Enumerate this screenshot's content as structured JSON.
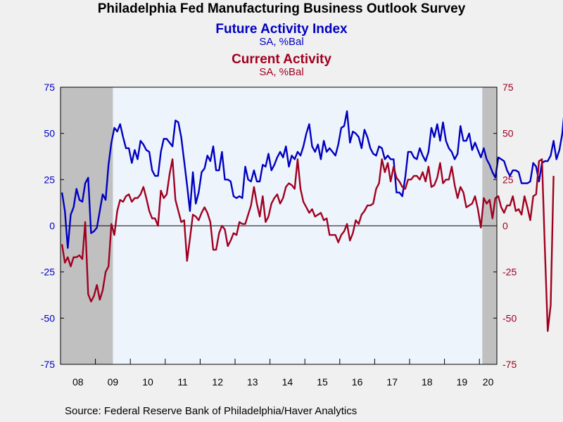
{
  "title": "Philadelphia Fed Manufacturing Business Outlook Survey",
  "source": "Source:  Federal Reserve Bank of Philadelphia/Haver Analytics",
  "colors": {
    "future": "#0000c0",
    "current": "#a00020",
    "recession": "#c0c0c0",
    "plot_bg": "#eef4fc"
  },
  "chart_data": {
    "type": "line",
    "x_unit": "year-month",
    "x_range": [
      "2008-01",
      "2020-06"
    ],
    "x_tick_labels": [
      "08",
      "09",
      "10",
      "11",
      "12",
      "13",
      "14",
      "15",
      "16",
      "17",
      "18",
      "19",
      "20"
    ],
    "ylim_left": [
      -75,
      75
    ],
    "ylim_right": [
      -75,
      75
    ],
    "y_ticks_left": [
      "75",
      "50",
      "25",
      "0",
      "-25",
      "-50",
      "-75"
    ],
    "y_ticks_right": [
      "75",
      "50",
      "25",
      "0",
      "-25",
      "-50",
      "-75"
    ],
    "zero_line": true,
    "grid": false,
    "recession_shading": [
      [
        "2008-01",
        "2009-06"
      ],
      [
        "2020-02",
        "2020-06"
      ]
    ],
    "series": [
      {
        "name": "Future Activity Index",
        "unit": "SA, %Bal",
        "axis": "left",
        "start": "2008-01",
        "values": [
          18,
          8,
          -12,
          6,
          10,
          20,
          14,
          13,
          23,
          26,
          -4,
          -3,
          -1,
          8,
          17,
          14,
          33,
          45,
          53,
          51,
          55,
          48,
          42,
          42,
          34,
          41,
          36,
          46,
          44,
          41,
          40,
          30,
          27,
          27,
          40,
          47,
          47,
          45,
          43,
          57,
          56,
          48,
          35,
          22,
          8,
          29,
          12,
          18,
          29,
          31,
          38,
          35,
          43,
          30,
          30,
          40,
          25,
          25,
          24,
          16,
          15,
          16,
          15,
          32,
          25,
          24,
          30,
          24,
          24,
          33,
          32,
          39,
          30,
          33,
          37,
          40,
          37,
          43,
          32,
          38,
          36,
          40,
          38,
          43,
          50,
          55,
          43,
          40,
          44,
          36,
          46,
          40,
          42,
          40,
          38,
          44,
          53,
          54,
          62,
          45,
          51,
          50,
          48,
          42,
          52,
          48,
          42,
          39,
          38,
          43,
          42,
          36,
          38,
          36,
          36,
          18,
          18,
          16,
          26,
          40,
          40,
          37,
          36,
          42,
          38,
          35,
          40,
          53,
          48,
          55,
          46,
          56,
          46,
          42,
          40,
          36,
          39,
          54,
          46,
          46,
          50,
          41,
          45,
          41,
          37,
          42,
          36,
          33,
          29,
          26,
          37,
          36,
          35,
          30,
          27,
          30,
          30,
          29,
          23,
          23,
          23,
          24,
          34,
          32,
          24,
          34,
          35,
          35,
          38,
          46,
          36,
          41,
          50,
          67
        ]
      },
      {
        "name": "Current Activity",
        "unit": "SA, %Bal",
        "axis": "right",
        "start": "2008-01",
        "values": [
          -10,
          -20,
          -17,
          -22,
          -17,
          -17,
          -16,
          -18,
          2,
          -37,
          -41,
          -38,
          -32,
          -40,
          -35,
          -25,
          -22,
          1,
          -5,
          8,
          14,
          13,
          16,
          17,
          13,
          15,
          15,
          17,
          21,
          15,
          8,
          4,
          4,
          0,
          19,
          15,
          17,
          28,
          36,
          14,
          8,
          2,
          3,
          -19,
          -7,
          6,
          5,
          3,
          7,
          10,
          7,
          2,
          -13,
          -13,
          -4,
          0,
          -2,
          -11,
          -8,
          -4,
          -5,
          2,
          1,
          1,
          6,
          11,
          21,
          12,
          5,
          16,
          2,
          5,
          12,
          15,
          17,
          12,
          15,
          21,
          23,
          22,
          20,
          36,
          20,
          13,
          10,
          7,
          9,
          5,
          6,
          7,
          3,
          4,
          -5,
          -5,
          -5,
          -9,
          -5,
          -3,
          1,
          -8,
          -4,
          3,
          1,
          6,
          8,
          11,
          11,
          12,
          20,
          23,
          36,
          29,
          34,
          24,
          32,
          26,
          24,
          21,
          20,
          25,
          25,
          27,
          27,
          25,
          29,
          24,
          32,
          21,
          22,
          26,
          34,
          23,
          25,
          25,
          32,
          22,
          15,
          21,
          18,
          10,
          11,
          12,
          16,
          9,
          -1,
          15,
          12,
          14,
          4,
          15,
          16,
          10,
          7,
          11,
          11,
          16,
          8,
          9,
          6,
          16,
          10,
          3,
          16,
          17,
          35,
          36,
          -12,
          -57,
          -43,
          27
        ]
      }
    ]
  }
}
